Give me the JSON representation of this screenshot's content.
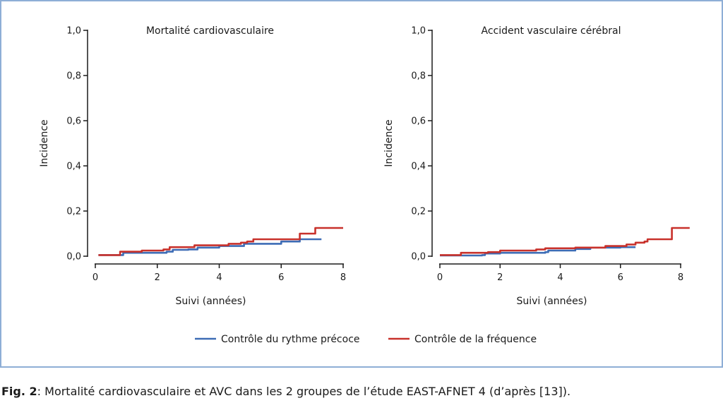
{
  "caption": {
    "label": "Fig. 2",
    "text": ": Mortalité cardiovasculaire et AVC dans les 2 groupes de l’étude EAST-AFNET 4 (d’après [13])."
  },
  "colors": {
    "early": "#3d6cb5",
    "usual": "#c8312b",
    "frame": "#8eaed6",
    "axis": "#1a1a1a"
  },
  "legend": [
    {
      "key": "early",
      "label": "Contrôle du rythme précoce"
    },
    {
      "key": "usual",
      "label": "Contrôle de la fréquence"
    }
  ],
  "chart_data": [
    {
      "type": "line",
      "title": "Mortalité cardiovasculaire",
      "xlabel": "Suivi (années)",
      "ylabel": "Incidence",
      "xlim": [
        0,
        8
      ],
      "ylim": [
        0,
        1
      ],
      "xticks": [
        "0",
        "2",
        "4",
        "6",
        "8"
      ],
      "yticks": [
        "0,0",
        "0,2",
        "0,4",
        "0,6",
        "0,8",
        "1,0"
      ],
      "grid": false,
      "series": [
        {
          "name": "Contrôle du rythme précoce",
          "key": "early",
          "x": [
            0.1,
            0.9,
            2.3,
            2.5,
            3.0,
            3.3,
            4.0,
            4.8,
            5.0,
            6.0,
            6.6,
            7.3
          ],
          "y": [
            0.005,
            0.015,
            0.02,
            0.028,
            0.03,
            0.038,
            0.045,
            0.055,
            0.055,
            0.065,
            0.075,
            0.075
          ]
        },
        {
          "name": "Contrôle de la fréquence",
          "key": "usual",
          "x": [
            0.1,
            0.8,
            1.5,
            2.2,
            2.4,
            3.0,
            3.2,
            4.0,
            4.3,
            4.7,
            4.9,
            5.1,
            5.5,
            6.5,
            6.6,
            7.0,
            7.1,
            7.5,
            8.0
          ],
          "y": [
            0.005,
            0.02,
            0.025,
            0.03,
            0.04,
            0.04,
            0.048,
            0.048,
            0.055,
            0.06,
            0.065,
            0.075,
            0.075,
            0.075,
            0.1,
            0.1,
            0.125,
            0.125,
            0.125
          ]
        }
      ]
    },
    {
      "type": "line",
      "title": "Accident vasculaire cérébral",
      "xlabel": "Suivi (années)",
      "ylabel": "Incidence",
      "xlim": [
        0,
        8
      ],
      "ylim": [
        0,
        1
      ],
      "xticks": [
        "0",
        "2",
        "4",
        "6",
        "8"
      ],
      "yticks": [
        "0,0",
        "0,2",
        "0,4",
        "0,6",
        "0,8",
        "1,0"
      ],
      "grid": false,
      "series": [
        {
          "name": "Contrôle du rythme précoce",
          "key": "early",
          "x": [
            0.0,
            1.4,
            1.5,
            2.0,
            3.5,
            3.6,
            4.5,
            5.0,
            6.0,
            6.5
          ],
          "y": [
            0.003,
            0.005,
            0.012,
            0.015,
            0.018,
            0.025,
            0.032,
            0.038,
            0.04,
            0.04
          ]
        },
        {
          "name": "Contrôle de la fréquence",
          "key": "usual",
          "x": [
            0.0,
            0.7,
            1.6,
            2.0,
            3.2,
            3.5,
            4.5,
            5.5,
            6.2,
            6.5,
            6.8,
            6.9,
            7.7,
            7.71,
            8.3
          ],
          "y": [
            0.005,
            0.015,
            0.018,
            0.025,
            0.03,
            0.035,
            0.038,
            0.045,
            0.052,
            0.06,
            0.065,
            0.075,
            0.075,
            0.125,
            0.125
          ]
        }
      ]
    }
  ]
}
